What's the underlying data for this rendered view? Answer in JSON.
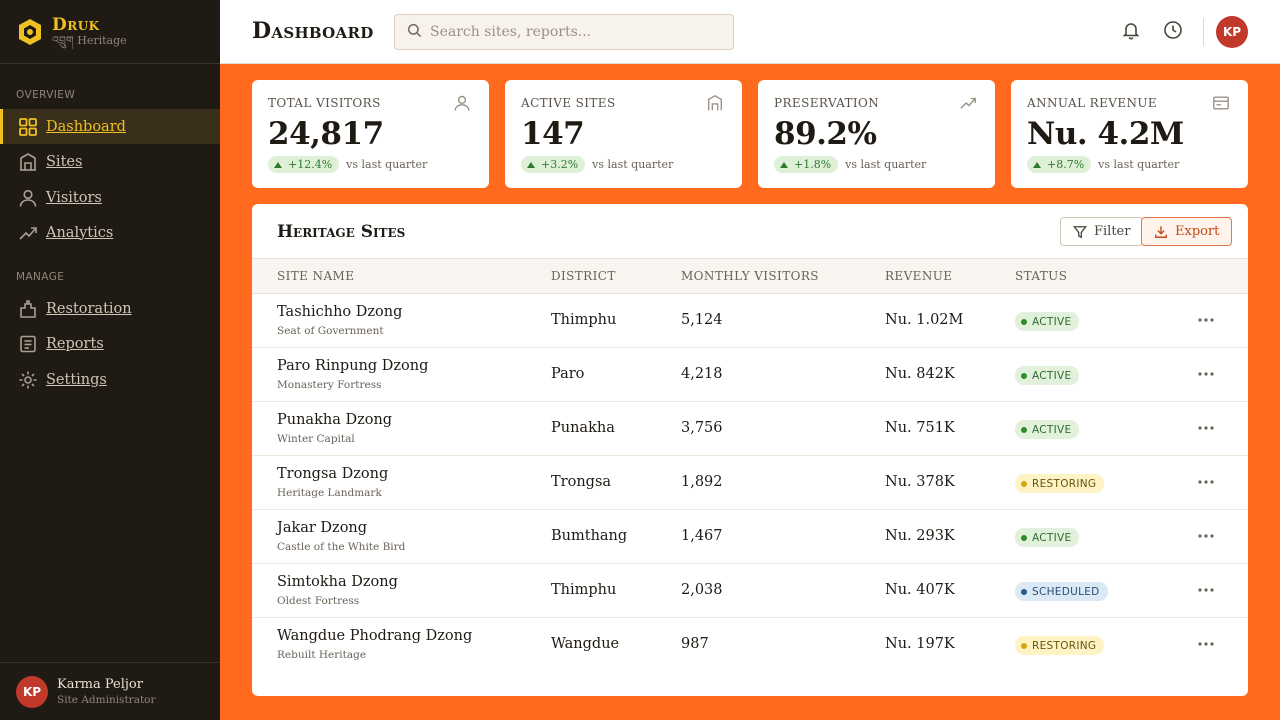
{
  "brand": {
    "name": "Druk",
    "sub": "འབྲུག Heritage"
  },
  "sidebar": {
    "section_overview": "Overview",
    "section_manage": "Manage",
    "items": [
      {
        "label": "Dashboard",
        "icon": "grid-icon",
        "active": true
      },
      {
        "label": "Sites",
        "icon": "building-icon"
      },
      {
        "label": "Visitors",
        "icon": "user-icon"
      },
      {
        "label": "Analytics",
        "icon": "trend-icon"
      },
      {
        "label": "Restoration",
        "icon": "tool-icon"
      },
      {
        "label": "Reports",
        "icon": "document-icon"
      },
      {
        "label": "Settings",
        "icon": "gear-icon"
      }
    ],
    "user": {
      "initials": "KP",
      "name": "Karma Peljor",
      "role": "Site Administrator"
    }
  },
  "header": {
    "title": "Dashboard",
    "search_placeholder": "Search sites, reports...",
    "avatar_initials": "KP"
  },
  "stats": [
    {
      "label": "Total Visitors",
      "value": "24,817",
      "trend": "+12.4%",
      "note": "vs last quarter",
      "icon": "user-icon"
    },
    {
      "label": "Active Sites",
      "value": "147",
      "trend": "+3.2%",
      "note": "vs last quarter",
      "icon": "building-icon"
    },
    {
      "label": "Preservation",
      "value": "89.2%",
      "trend": "+1.8%",
      "note": "vs last quarter",
      "icon": "trend-icon"
    },
    {
      "label": "Annual Revenue",
      "value": "Nu. 4.2M",
      "trend": "+8.7%",
      "note": "vs last quarter",
      "icon": "card-icon"
    }
  ],
  "table": {
    "title": "Heritage Sites",
    "filter_label": "Filter",
    "export_label": "Export",
    "columns": [
      "Site Name",
      "District",
      "Monthly Visitors",
      "Revenue",
      "Status"
    ],
    "rows": [
      {
        "name": "Tashichho Dzong",
        "sub": "Seat of Government",
        "district": "Thimphu",
        "visitors": "5,124",
        "revenue": "Nu. 1.02M",
        "status": "Active",
        "status_kind": "active"
      },
      {
        "name": "Paro Rinpung Dzong",
        "sub": "Monastery Fortress",
        "district": "Paro",
        "visitors": "4,218",
        "revenue": "Nu. 842K",
        "status": "Active",
        "status_kind": "active"
      },
      {
        "name": "Punakha Dzong",
        "sub": "Winter Capital",
        "district": "Punakha",
        "visitors": "3,756",
        "revenue": "Nu. 751K",
        "status": "Active",
        "status_kind": "active"
      },
      {
        "name": "Trongsa Dzong",
        "sub": "Heritage Landmark",
        "district": "Trongsa",
        "visitors": "1,892",
        "revenue": "Nu. 378K",
        "status": "Restoring",
        "status_kind": "restoring"
      },
      {
        "name": "Jakar Dzong",
        "sub": "Castle of the White Bird",
        "district": "Bumthang",
        "visitors": "1,467",
        "revenue": "Nu. 293K",
        "status": "Active",
        "status_kind": "active"
      },
      {
        "name": "Simtokha Dzong",
        "sub": "Oldest Fortress",
        "district": "Thimphu",
        "visitors": "2,038",
        "revenue": "Nu. 407K",
        "status": "Scheduled",
        "status_kind": "scheduled"
      },
      {
        "name": "Wangdue Phodrang Dzong",
        "sub": "Rebuilt Heritage",
        "district": "Wangdue",
        "visitors": "987",
        "revenue": "Nu. 197K",
        "status": "Restoring",
        "status_kind": "restoring"
      }
    ]
  },
  "colors": {
    "accent": "#f0c020",
    "background": "#ff6a1f",
    "sidebar": "#1f1a14",
    "export": "#c24a14"
  }
}
